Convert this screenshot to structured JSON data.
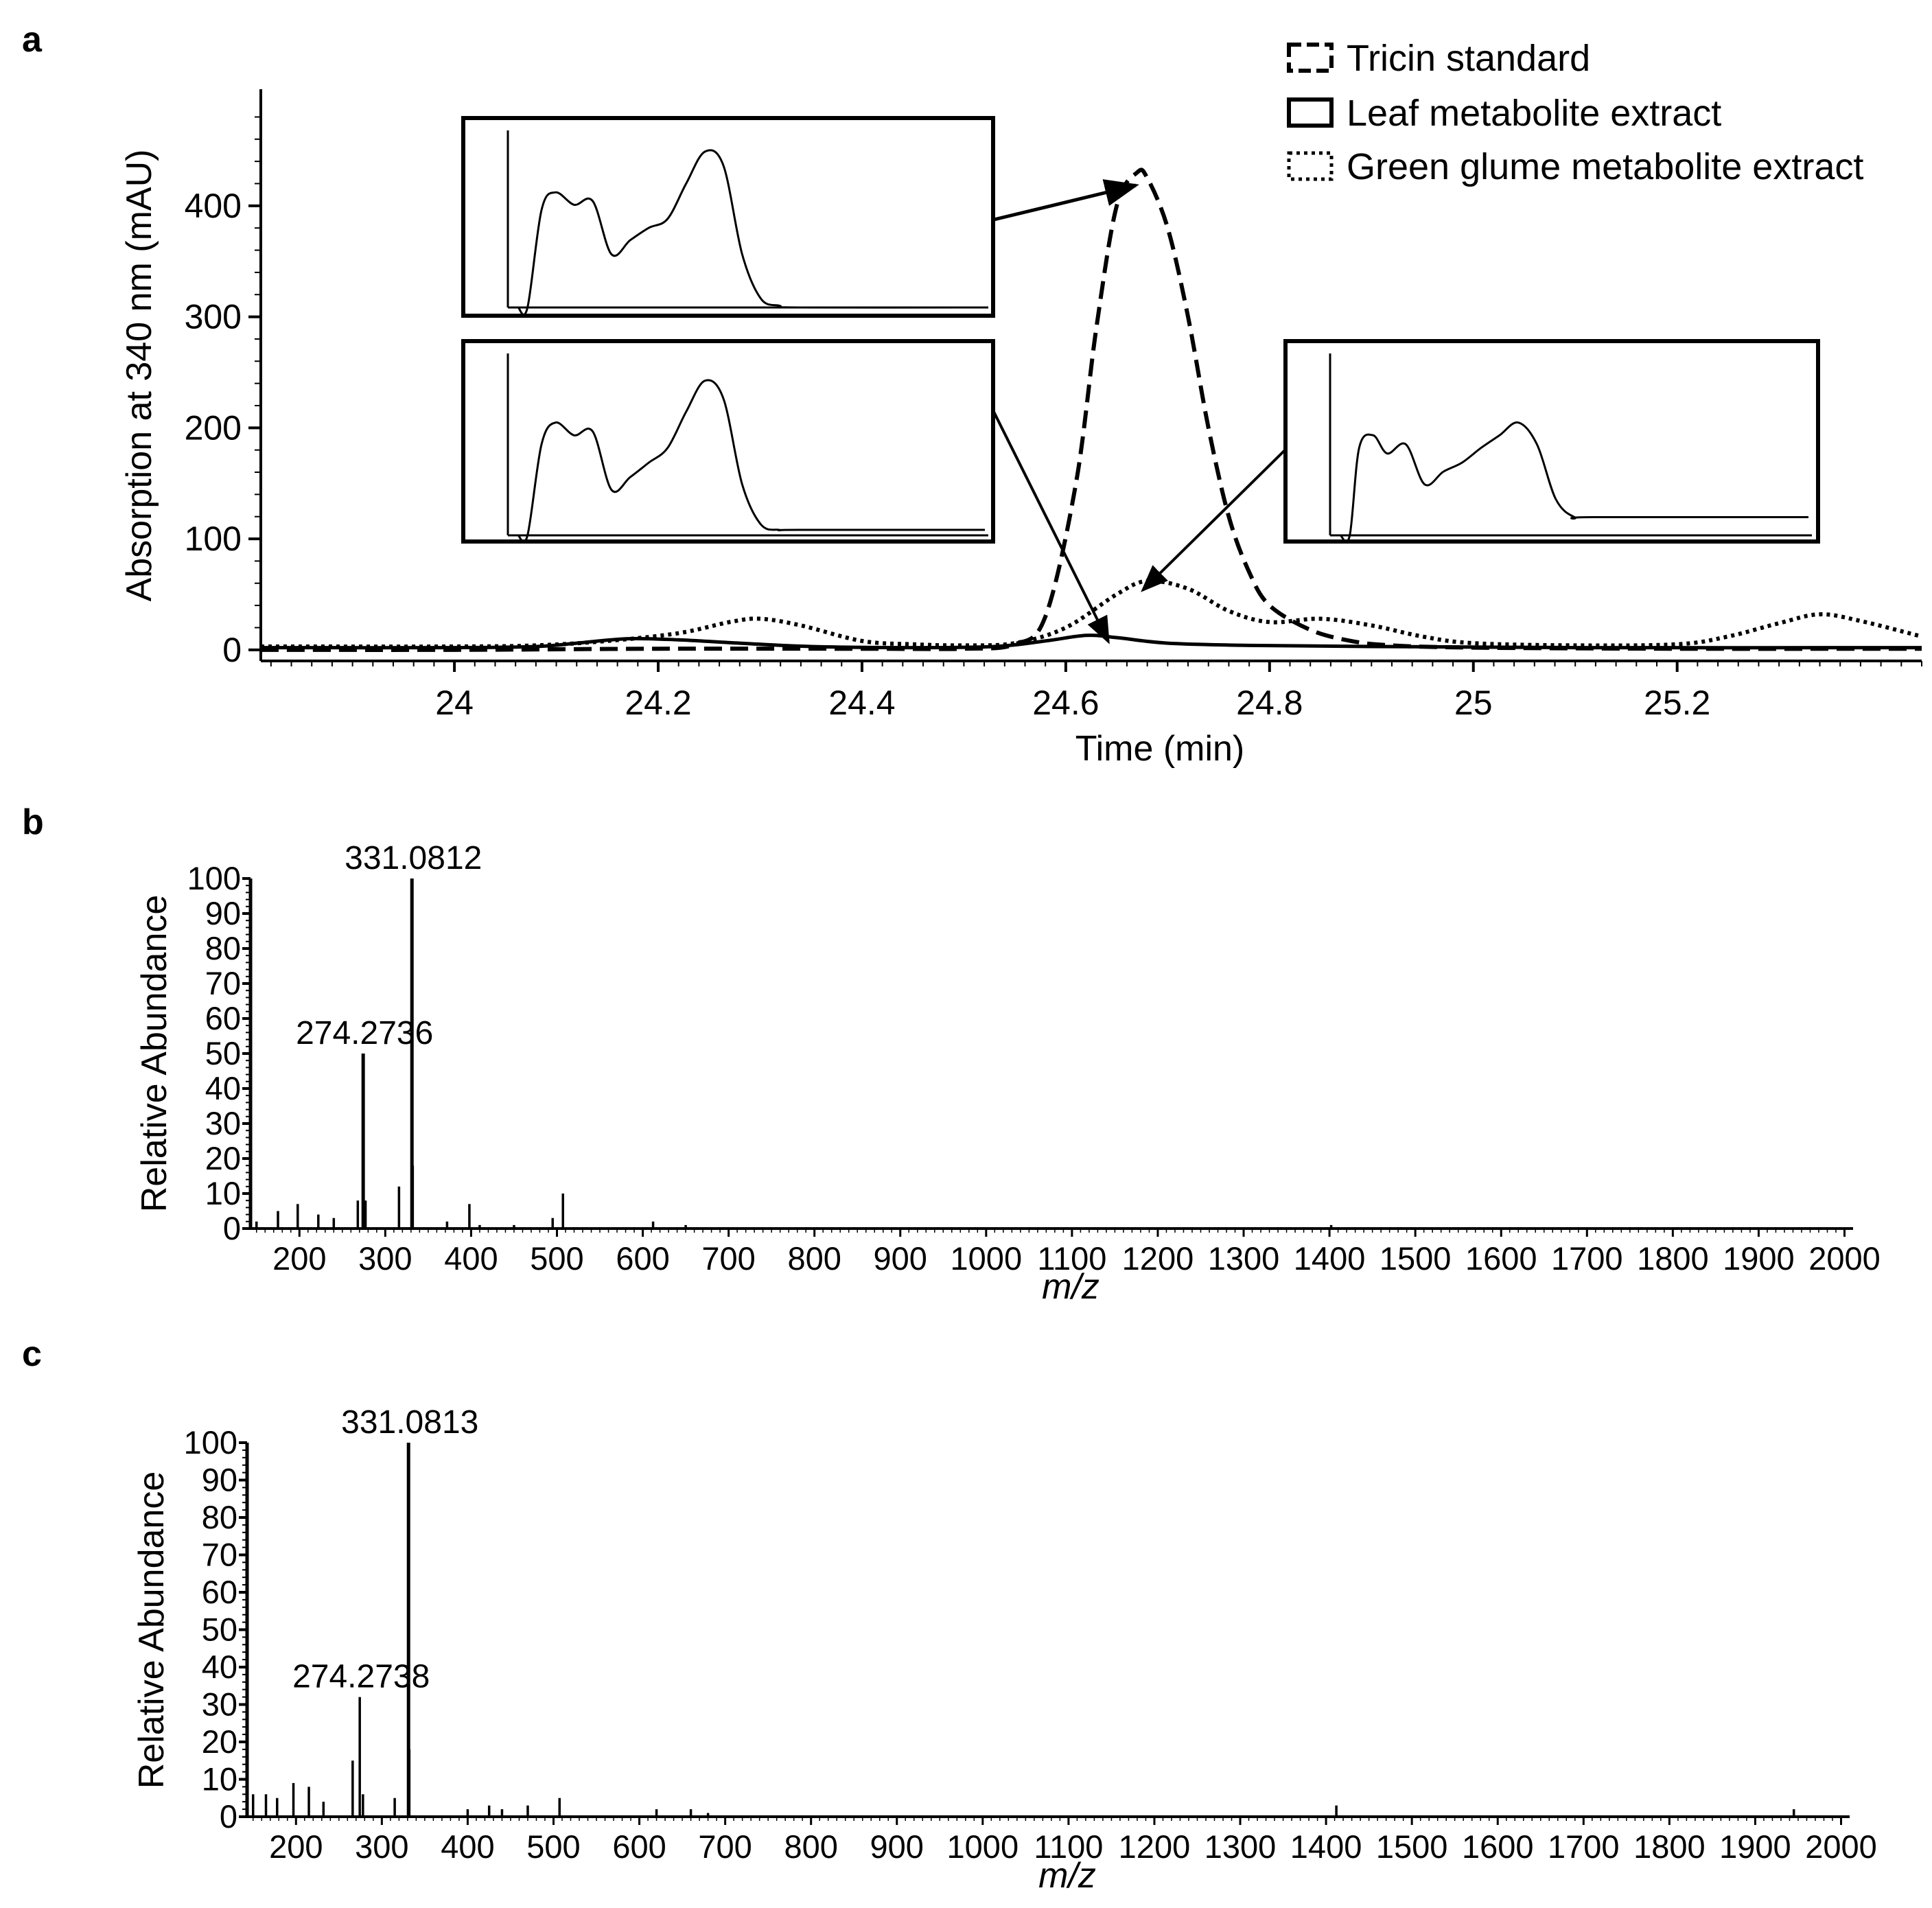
{
  "panels": {
    "a": {
      "letter": "a"
    },
    "b": {
      "letter": "b"
    },
    "c": {
      "letter": "c"
    }
  },
  "chart_data": [
    {
      "panel": "a",
      "type": "line",
      "title": "",
      "xlabel": "Time (min)",
      "ylabel": "Absorption at 340 nm (mAU)",
      "xlim": [
        23.81,
        25.44
      ],
      "ylim": [
        -10,
        505
      ],
      "xticks": [
        24,
        24.2,
        24.4,
        24.6,
        24.8,
        25,
        25.2
      ],
      "xtick_labels": [
        "24",
        "24.2",
        "24.4",
        "24.6",
        "24.8",
        "25",
        "25.2"
      ],
      "yticks": [
        0,
        100,
        200,
        300,
        400
      ],
      "ytick_labels": [
        "0",
        "100",
        "200",
        "300",
        "400"
      ],
      "legend": [
        "Tricin standard",
        "Leaf metabolite extract",
        "Green glume metabolite extract"
      ],
      "legend_position": "top-right",
      "series": [
        {
          "name": "Tricin standard",
          "style": "dashed",
          "x": [
            23.81,
            24.0,
            24.2,
            24.4,
            24.5,
            24.55,
            24.58,
            24.61,
            24.63,
            24.65,
            24.67,
            24.68,
            24.7,
            24.72,
            24.74,
            24.76,
            24.78,
            24.8,
            24.84,
            24.88,
            24.92,
            25.0,
            25.2,
            25.44
          ],
          "y": [
            0,
            0,
            1,
            1,
            1,
            5,
            30,
            150,
            290,
            400,
            430,
            425,
            380,
            300,
            200,
            120,
            70,
            40,
            18,
            8,
            4,
            2,
            1,
            1
          ]
        },
        {
          "name": "Leaf metabolite extract",
          "style": "solid",
          "x": [
            23.81,
            24.0,
            24.08,
            24.12,
            24.17,
            24.22,
            24.28,
            24.35,
            24.45,
            24.53,
            24.58,
            24.62,
            24.65,
            24.7,
            24.78,
            24.9,
            25.1,
            25.44
          ],
          "y": [
            2,
            2,
            3,
            6,
            10,
            9,
            6,
            3,
            2,
            3,
            8,
            13,
            11,
            6,
            4,
            3,
            2,
            2
          ]
        },
        {
          "name": "Green glume metabolite extract",
          "style": "dotted",
          "x": [
            23.81,
            24.0,
            24.08,
            24.15,
            24.22,
            24.27,
            24.3,
            24.34,
            24.4,
            24.45,
            24.5,
            24.55,
            24.6,
            24.65,
            24.68,
            24.72,
            24.76,
            24.8,
            24.85,
            24.9,
            24.95,
            25.0,
            25.1,
            25.2,
            25.25,
            25.3,
            25.34,
            25.38,
            25.44
          ],
          "y": [
            3,
            3,
            4,
            8,
            15,
            25,
            28,
            22,
            8,
            5,
            4,
            6,
            20,
            50,
            62,
            55,
            35,
            25,
            28,
            22,
            12,
            6,
            4,
            5,
            12,
            24,
            32,
            26,
            12
          ]
        }
      ],
      "insets": [
        {
          "name": "Tricin standard UV spectrum",
          "x": [
            0,
            0.02,
            0.05,
            0.08,
            0.12,
            0.16,
            0.2,
            0.24,
            0.28,
            0.32,
            0.36,
            0.4,
            0.44,
            0.48,
            0.52,
            0.56,
            0.6,
            1.0
          ],
          "y": [
            0,
            0,
            0.55,
            0.65,
            0.58,
            0.6,
            0.3,
            0.38,
            0.45,
            0.5,
            0.7,
            0.88,
            0.8,
            0.3,
            0.05,
            0.01,
            0,
            0
          ]
        },
        {
          "name": "Leaf extract UV spectrum",
          "x": [
            0,
            0.02,
            0.05,
            0.08,
            0.12,
            0.16,
            0.2,
            0.24,
            0.28,
            0.32,
            0.36,
            0.4,
            0.44,
            0.48,
            0.52,
            0.56,
            0.6,
            1.0
          ],
          "y": [
            0,
            0,
            0.5,
            0.62,
            0.55,
            0.57,
            0.25,
            0.32,
            0.4,
            0.48,
            0.68,
            0.85,
            0.75,
            0.28,
            0.06,
            0.03,
            0.03,
            0.03
          ]
        },
        {
          "name": "Green glume extract UV spectrum",
          "x": [
            0,
            0.02,
            0.04,
            0.07,
            0.1,
            0.14,
            0.18,
            0.22,
            0.26,
            0.3,
            0.34,
            0.38,
            0.42,
            0.46,
            0.5,
            0.54,
            1.0
          ],
          "y": [
            0,
            0,
            0.48,
            0.55,
            0.45,
            0.5,
            0.28,
            0.35,
            0.4,
            0.48,
            0.55,
            0.62,
            0.5,
            0.2,
            0.1,
            0.1,
            0.1
          ]
        }
      ]
    },
    {
      "panel": "b",
      "type": "bar",
      "title": "",
      "xlabel": "m/z",
      "ylabel": "Relative Abundance",
      "xlim": [
        143,
        2010
      ],
      "ylim": [
        0,
        100
      ],
      "xticks": [
        200,
        300,
        400,
        500,
        600,
        700,
        800,
        900,
        1000,
        1100,
        1200,
        1300,
        1400,
        1500,
        1600,
        1700,
        1800,
        1900,
        2000
      ],
      "xtick_labels": [
        "200",
        "300",
        "400",
        "500",
        "600",
        "700",
        "800",
        "900",
        "1000",
        "1100",
        "1200",
        "1300",
        "1400",
        "1500",
        "1600",
        "1700",
        "1800",
        "1900",
        "2000"
      ],
      "yticks": [
        0,
        10,
        20,
        30,
        40,
        50,
        60,
        70,
        80,
        90,
        100
      ],
      "ytick_labels": [
        "0",
        "10",
        "20",
        "30",
        "40",
        "50",
        "60",
        "70",
        "80",
        "90",
        "100"
      ],
      "peak_labels": [
        {
          "mz": 331.0812,
          "label": "331.0812"
        },
        {
          "mz": 274.2736,
          "label": "274.2736"
        }
      ],
      "peaks": [
        {
          "mz": 150,
          "intensity": 2
        },
        {
          "mz": 175,
          "intensity": 5
        },
        {
          "mz": 198,
          "intensity": 7
        },
        {
          "mz": 222,
          "intensity": 4
        },
        {
          "mz": 240,
          "intensity": 3
        },
        {
          "mz": 268,
          "intensity": 8
        },
        {
          "mz": 274.2736,
          "intensity": 50
        },
        {
          "mz": 277,
          "intensity": 8
        },
        {
          "mz": 316,
          "intensity": 12
        },
        {
          "mz": 331.0812,
          "intensity": 100
        },
        {
          "mz": 332,
          "intensity": 18
        },
        {
          "mz": 372,
          "intensity": 2
        },
        {
          "mz": 398,
          "intensity": 7
        },
        {
          "mz": 410,
          "intensity": 1
        },
        {
          "mz": 450,
          "intensity": 1
        },
        {
          "mz": 495,
          "intensity": 3
        },
        {
          "mz": 507,
          "intensity": 10
        },
        {
          "mz": 612,
          "intensity": 2
        },
        {
          "mz": 650,
          "intensity": 1
        },
        {
          "mz": 1402,
          "intensity": 1
        }
      ]
    },
    {
      "panel": "c",
      "type": "bar",
      "title": "",
      "xlabel": "m/z",
      "ylabel": "Relative Abundance",
      "xlim": [
        143,
        2010
      ],
      "ylim": [
        0,
        100
      ],
      "xticks": [
        200,
        300,
        400,
        500,
        600,
        700,
        800,
        900,
        1000,
        1100,
        1200,
        1300,
        1400,
        1500,
        1600,
        1700,
        1800,
        1900,
        2000
      ],
      "xtick_labels": [
        "200",
        "300",
        "400",
        "500",
        "600",
        "700",
        "800",
        "900",
        "1000",
        "1100",
        "1200",
        "1300",
        "1400",
        "1500",
        "1600",
        "1700",
        "1800",
        "1900",
        "2000"
      ],
      "yticks": [
        0,
        10,
        20,
        30,
        40,
        50,
        60,
        70,
        80,
        90,
        100
      ],
      "ytick_labels": [
        "0",
        "10",
        "20",
        "30",
        "40",
        "50",
        "60",
        "70",
        "80",
        "90",
        "100"
      ],
      "peak_labels": [
        {
          "mz": 331.0813,
          "label": "331.0813"
        },
        {
          "mz": 274.2738,
          "label": "274.2738"
        }
      ],
      "peaks": [
        {
          "mz": 150,
          "intensity": 6
        },
        {
          "mz": 165,
          "intensity": 6
        },
        {
          "mz": 178,
          "intensity": 5
        },
        {
          "mz": 197,
          "intensity": 9
        },
        {
          "mz": 215,
          "intensity": 8
        },
        {
          "mz": 232,
          "intensity": 4
        },
        {
          "mz": 266,
          "intensity": 15
        },
        {
          "mz": 274.2738,
          "intensity": 32
        },
        {
          "mz": 278,
          "intensity": 6
        },
        {
          "mz": 315,
          "intensity": 5
        },
        {
          "mz": 331.0813,
          "intensity": 100
        },
        {
          "mz": 332,
          "intensity": 18
        },
        {
          "mz": 400,
          "intensity": 2
        },
        {
          "mz": 425,
          "intensity": 3
        },
        {
          "mz": 440,
          "intensity": 2
        },
        {
          "mz": 470,
          "intensity": 3
        },
        {
          "mz": 507,
          "intensity": 5
        },
        {
          "mz": 620,
          "intensity": 2
        },
        {
          "mz": 660,
          "intensity": 2
        },
        {
          "mz": 680,
          "intensity": 1
        },
        {
          "mz": 1412,
          "intensity": 3
        },
        {
          "mz": 1945,
          "intensity": 2
        }
      ]
    }
  ]
}
